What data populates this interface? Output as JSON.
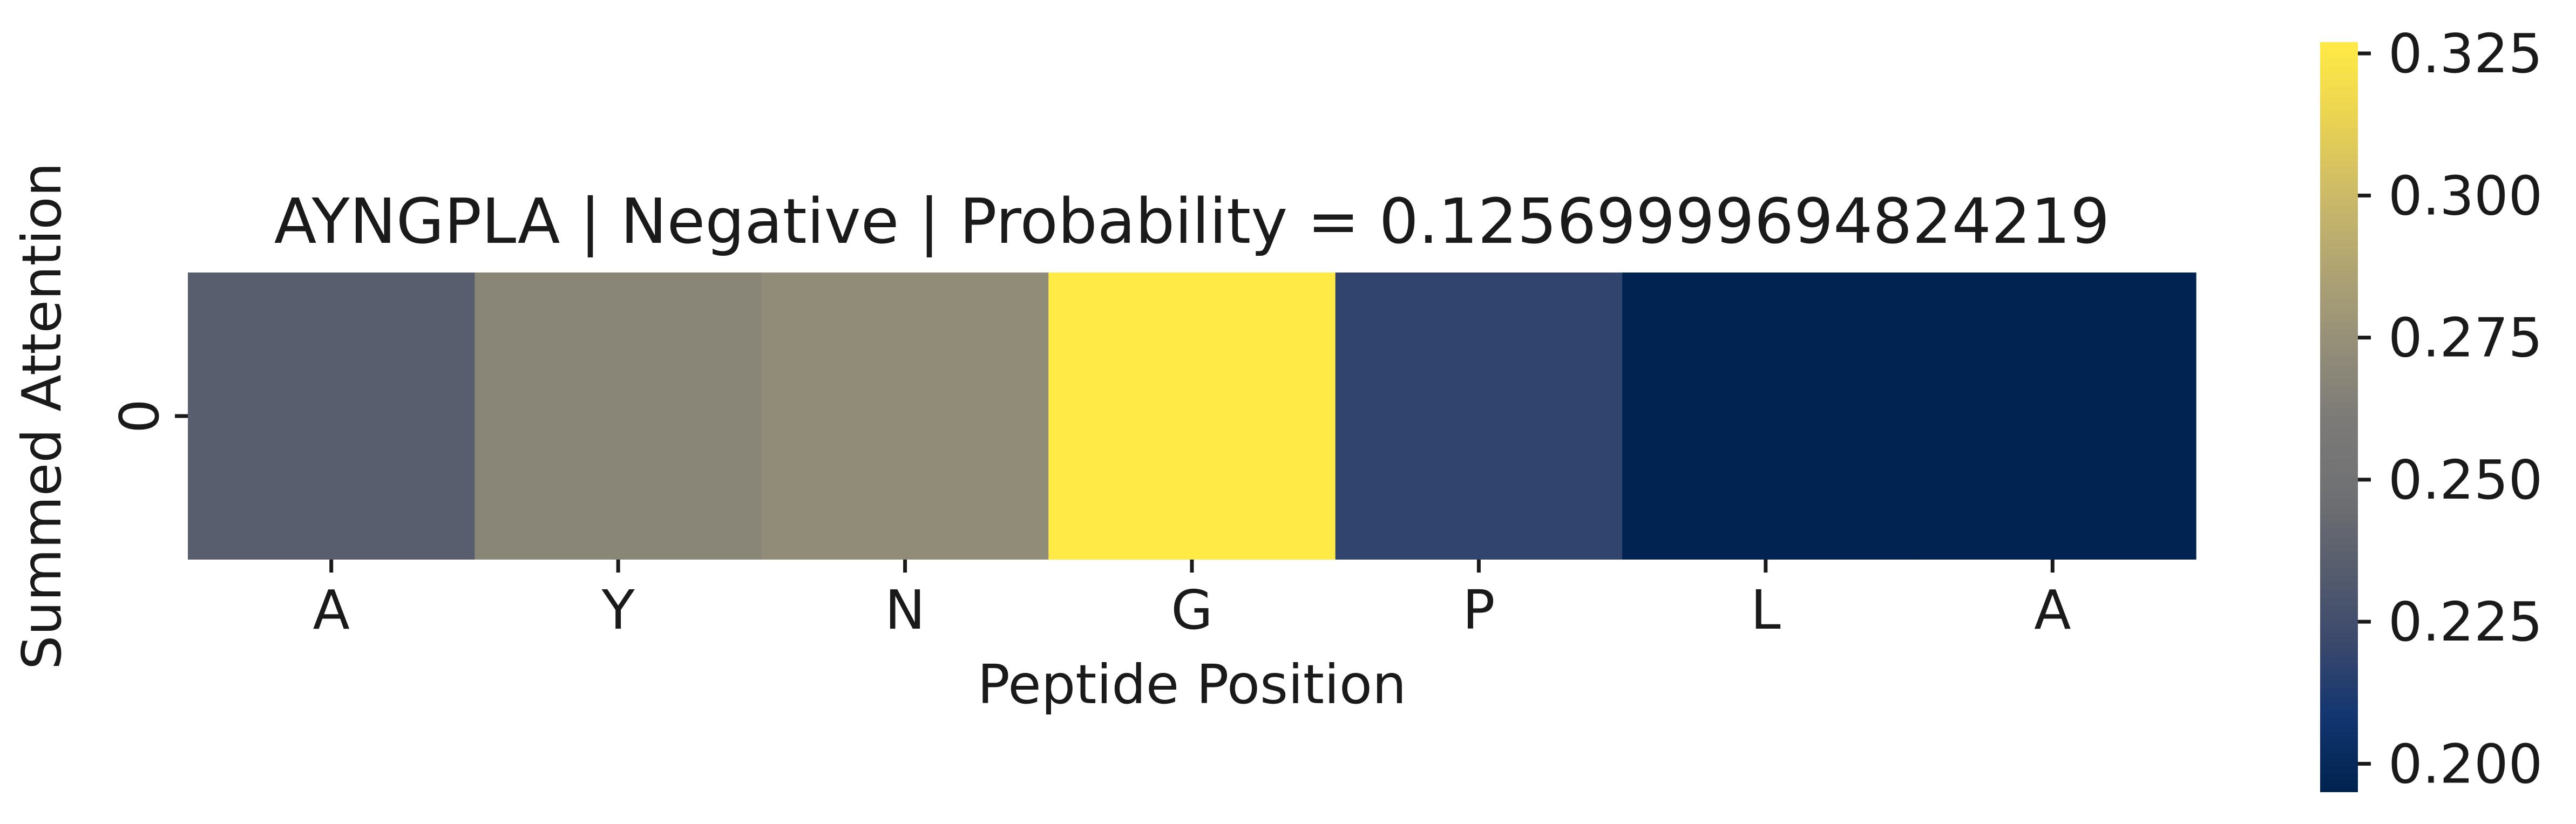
{
  "chart_data": {
    "type": "heatmap",
    "title": "AYNGPLA | Negative | Probability = 0.12569999694824219",
    "xlabel": "Peptide Position",
    "ylabel": "Summed Attention",
    "x_categories": [
      "A",
      "Y",
      "N",
      "G",
      "P",
      "L",
      "A"
    ],
    "y_categories": [
      "0"
    ],
    "values": [
      [
        0.235,
        0.268,
        0.272,
        0.327,
        0.218,
        0.196,
        0.196
      ]
    ],
    "colormap": "cividis",
    "color_range": [
      0.195,
      0.327
    ],
    "colorbar": {
      "ticks": [
        0.2,
        0.225,
        0.25,
        0.275,
        0.3,
        0.325
      ],
      "tick_labels": [
        "0.200",
        "0.225",
        "0.250",
        "0.275",
        "0.300",
        "0.325"
      ]
    },
    "grid": false,
    "legend": "colorbar-right"
  }
}
